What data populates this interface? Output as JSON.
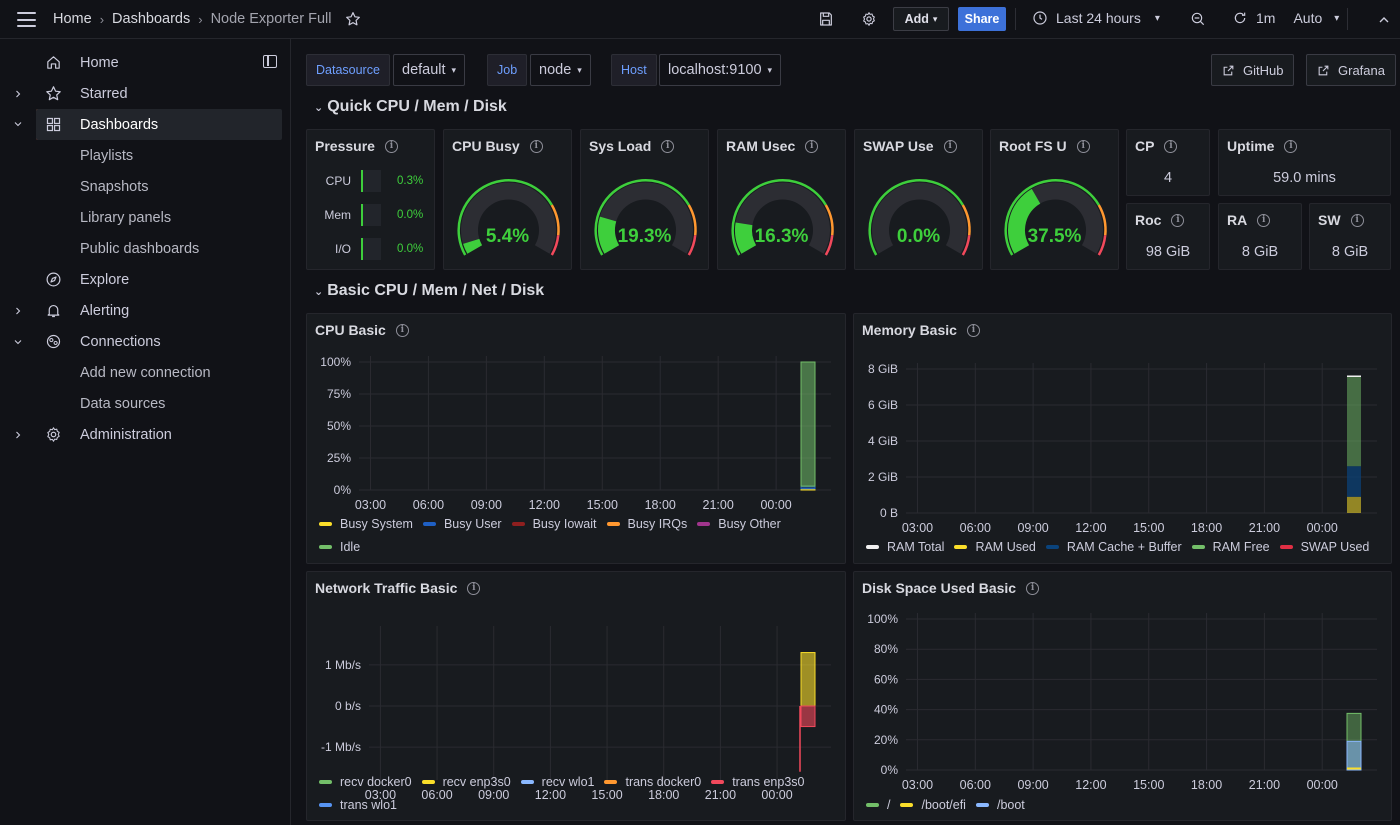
{
  "breadcrumb": {
    "home": "Home",
    "dashboards": "Dashboards",
    "current": "Node Exporter Full"
  },
  "toolbar": {
    "add_label": "Add",
    "share_label": "Share",
    "time_range": "Last 24 hours",
    "refresh_interval": "1m",
    "auto_label": "Auto"
  },
  "sidebar": {
    "items": [
      {
        "label": "Home"
      },
      {
        "label": "Starred"
      },
      {
        "label": "Dashboards"
      },
      {
        "label": "Playlists"
      },
      {
        "label": "Snapshots"
      },
      {
        "label": "Library panels"
      },
      {
        "label": "Public dashboards"
      },
      {
        "label": "Explore"
      },
      {
        "label": "Alerting"
      },
      {
        "label": "Connections"
      },
      {
        "label": "Add new connection"
      },
      {
        "label": "Data sources"
      },
      {
        "label": "Administration"
      }
    ]
  },
  "variables": {
    "datasource_label": "Datasource",
    "datasource_value": "default",
    "job_label": "Job",
    "job_value": "node",
    "host_label": "Host",
    "host_value": "localhost:9100"
  },
  "links": {
    "github": "GitHub",
    "grafana": "Grafana"
  },
  "rows": {
    "quick": "Quick CPU / Mem / Disk",
    "basic": "Basic CPU / Mem / Net / Disk"
  },
  "quick_panels": {
    "pressure": {
      "title": "Pressure",
      "items": [
        {
          "label": "CPU",
          "value": "0.3%"
        },
        {
          "label": "Mem",
          "value": "0.0%"
        },
        {
          "label": "I/O",
          "value": "0.0%"
        }
      ]
    },
    "cpu_busy": {
      "title": "CPU Busy",
      "value": "5.4%",
      "fraction": 0.054
    },
    "sys_load": {
      "title": "Sys Load",
      "value": "19.3%",
      "fraction": 0.193
    },
    "ram_used": {
      "title": "RAM Usec",
      "value": "16.3%",
      "fraction": 0.163
    },
    "swap_used": {
      "title": "SWAP Use",
      "value": "0.0%",
      "fraction": 0.0
    },
    "root_fs": {
      "title": "Root FS U",
      "value": "37.5%",
      "fraction": 0.375
    },
    "cpu_cores": {
      "title": "CP",
      "value": "4"
    },
    "uptime": {
      "title": "Uptime",
      "value": "59.0 mins"
    },
    "rootfs_total": {
      "title": "Roc",
      "value": "98 GiB"
    },
    "ram_total": {
      "title": "RA",
      "value": "8 GiB"
    },
    "swap_total": {
      "title": "SW",
      "value": "8 GiB"
    }
  },
  "colors": {
    "green": "#3ecf3c",
    "orange": "#ff9830",
    "red": "#f2495c",
    "yellow": "#fade2a",
    "blue": "#5794f2",
    "grid": "#2a2b31"
  },
  "chart_data": [
    {
      "type": "area",
      "title": "CPU Basic",
      "x": [
        "03:00",
        "06:00",
        "09:00",
        "12:00",
        "15:00",
        "18:00",
        "21:00",
        "00:00"
      ],
      "yticks": [
        "0%",
        "25%",
        "50%",
        "75%",
        "100%"
      ],
      "ylim": [
        0,
        100
      ],
      "series": [
        {
          "name": "Busy System",
          "color": "#fade2a",
          "values": [
            0,
            0,
            0,
            0,
            0,
            0,
            0,
            1
          ]
        },
        {
          "name": "Busy User",
          "color": "#1f60c4",
          "values": [
            0,
            0,
            0,
            0,
            0,
            0,
            0,
            2
          ]
        },
        {
          "name": "Busy Iowait",
          "color": "#8f1f1f",
          "values": [
            0,
            0,
            0,
            0,
            0,
            0,
            0,
            0
          ]
        },
        {
          "name": "Busy IRQs",
          "color": "#ff9830",
          "values": [
            0,
            0,
            0,
            0,
            0,
            0,
            0,
            0
          ]
        },
        {
          "name": "Busy Other",
          "color": "#a1358d",
          "values": [
            0,
            0,
            0,
            0,
            0,
            0,
            0,
            0
          ]
        },
        {
          "name": "Idle",
          "color": "#73bf69",
          "values": [
            0,
            0,
            0,
            0,
            0,
            0,
            0,
            97
          ]
        }
      ]
    },
    {
      "type": "area",
      "title": "Memory Basic",
      "x": [
        "03:00",
        "06:00",
        "09:00",
        "12:00",
        "15:00",
        "18:00",
        "21:00",
        "00:00"
      ],
      "yticks": [
        "0 B",
        "2 GiB",
        "4 GiB",
        "6 GiB",
        "8 GiB"
      ],
      "ylim": [
        0,
        8
      ],
      "series": [
        {
          "name": "RAM Total",
          "color": "#f0f0f0",
          "values": [
            0,
            0,
            0,
            0,
            0,
            0,
            0,
            7.6
          ]
        },
        {
          "name": "RAM Used",
          "color": "#fade2a",
          "values": [
            0,
            0,
            0,
            0,
            0,
            0,
            0,
            0.9
          ]
        },
        {
          "name": "RAM Cache + Buffer",
          "color": "#0a437c",
          "values": [
            0,
            0,
            0,
            0,
            0,
            0,
            0,
            1.7
          ]
        },
        {
          "name": "RAM Free",
          "color": "#73bf69",
          "values": [
            0,
            0,
            0,
            0,
            0,
            0,
            0,
            5.0
          ]
        },
        {
          "name": "SWAP Used",
          "color": "#e02f44",
          "values": [
            0,
            0,
            0,
            0,
            0,
            0,
            0,
            0
          ]
        }
      ]
    },
    {
      "type": "area",
      "title": "Network Traffic Basic",
      "x": [
        "03:00",
        "06:00",
        "09:00",
        "12:00",
        "15:00",
        "18:00",
        "21:00",
        "00:00"
      ],
      "yticks": [
        "-1 Mb/s",
        "0 b/s",
        "1 Mb/s"
      ],
      "ylim": [
        -1.8,
        1.8
      ],
      "series": [
        {
          "name": "recv docker0",
          "color": "#73bf69",
          "values": [
            0,
            0,
            0,
            0,
            0,
            0,
            0,
            0
          ]
        },
        {
          "name": "recv enp3s0",
          "color": "#fade2a",
          "values": [
            0,
            0,
            0,
            0,
            0,
            0,
            0,
            1.3
          ]
        },
        {
          "name": "recv wlo1",
          "color": "#8ab8ff",
          "values": [
            0,
            0,
            0,
            0,
            0,
            0,
            0,
            0
          ]
        },
        {
          "name": "trans docker0",
          "color": "#ff9830",
          "values": [
            0,
            0,
            0,
            0,
            0,
            0,
            0,
            0
          ]
        },
        {
          "name": "trans enp3s0",
          "color": "#f2495c",
          "values": [
            0,
            0,
            0,
            0,
            0,
            0,
            0,
            -0.5
          ]
        },
        {
          "name": "trans wlo1",
          "color": "#5794f2",
          "values": [
            0,
            0,
            0,
            0,
            0,
            0,
            0,
            0
          ]
        }
      ]
    },
    {
      "type": "area",
      "title": "Disk Space Used Basic",
      "x": [
        "03:00",
        "06:00",
        "09:00",
        "12:00",
        "15:00",
        "18:00",
        "21:00",
        "00:00"
      ],
      "yticks": [
        "0%",
        "20%",
        "40%",
        "60%",
        "80%",
        "100%"
      ],
      "ylim": [
        0,
        100
      ],
      "series": [
        {
          "name": "/",
          "color": "#73bf69",
          "values": [
            0,
            0,
            0,
            0,
            0,
            0,
            0,
            37.5
          ]
        },
        {
          "name": "/boot/efi",
          "color": "#fade2a",
          "values": [
            0,
            0,
            0,
            0,
            0,
            0,
            0,
            1
          ]
        },
        {
          "name": "/boot",
          "color": "#8ab8ff",
          "values": [
            0,
            0,
            0,
            0,
            0,
            0,
            0,
            19
          ]
        }
      ]
    }
  ]
}
